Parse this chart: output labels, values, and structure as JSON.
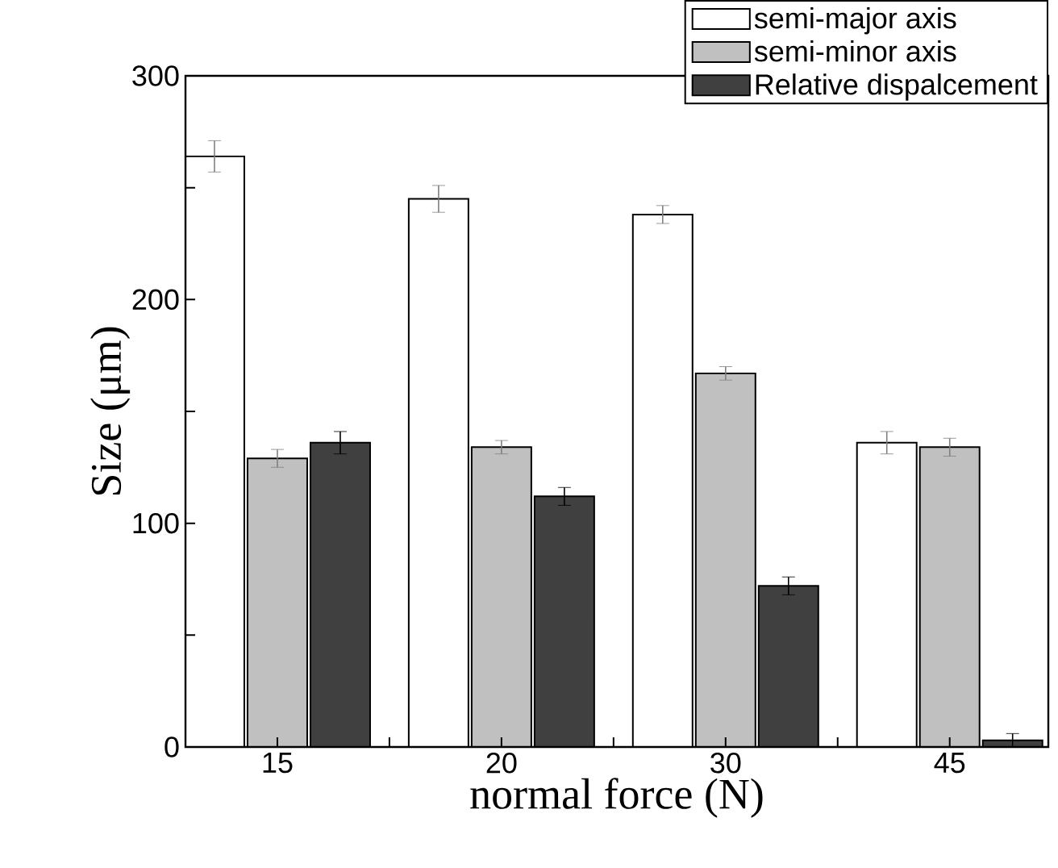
{
  "chart_data": {
    "type": "bar",
    "xlabel": "normal force (N)",
    "ylabel": "Size (μm)",
    "categories": [
      "15",
      "20",
      "30",
      "45"
    ],
    "series": [
      {
        "name": "semi-major axis",
        "color": "#ffffff",
        "values": [
          264,
          245,
          238,
          136
        ],
        "errors": [
          7,
          6,
          4,
          5
        ]
      },
      {
        "name": "semi-minor axis",
        "color": "#c0c0c0",
        "values": [
          129,
          134,
          167,
          134
        ],
        "errors": [
          4,
          3,
          3,
          4
        ]
      },
      {
        "name": "Relative dispalcement",
        "color": "#404040",
        "values": [
          136,
          112,
          72,
          3
        ],
        "errors": [
          5,
          4,
          4,
          3
        ]
      }
    ],
    "ylim": [
      0,
      300
    ],
    "yticks": [
      0,
      {
        "value": 50,
        "label": null
      },
      100,
      {
        "value": 150,
        "label": null
      },
      200,
      {
        "value": 250,
        "label": null
      },
      300
    ],
    "legend": "top right"
  }
}
